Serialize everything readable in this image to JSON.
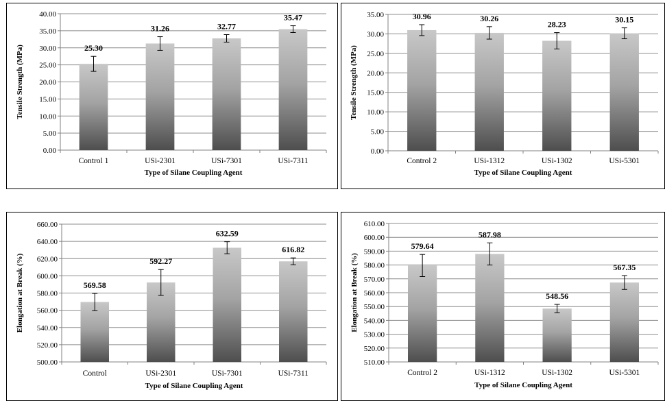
{
  "chart_data": [
    {
      "type": "bar",
      "title": "",
      "xlabel": "Type of Silane Coupling Agent",
      "ylabel": "Tensile Strength (MPa)",
      "categories": [
        "Control 1",
        "USi-2301",
        "USi-7301",
        "USi-7311"
      ],
      "values": [
        25.3,
        31.26,
        32.77,
        35.47
      ],
      "errors": [
        2.2,
        2.0,
        1.1,
        1.0
      ],
      "data_labels": [
        "25.30",
        "31.26",
        "32.77",
        "35.47"
      ],
      "ylim": [
        0,
        40
      ],
      "yticks": [
        "0.00",
        "5.00",
        "10.00",
        "15.00",
        "20.00",
        "25.00",
        "30.00",
        "35.00",
        "40.00"
      ],
      "grid": true,
      "legend": "none"
    },
    {
      "type": "bar",
      "title": "",
      "xlabel": "Type of Silane Coupling Agent",
      "ylabel": "Tensile Strength (MPa)",
      "categories": [
        "Control 2",
        "USi-1312",
        "USi-1302",
        "USi-5301"
      ],
      "values": [
        30.96,
        30.26,
        28.23,
        30.15
      ],
      "errors": [
        1.4,
        1.6,
        2.1,
        1.4
      ],
      "data_labels": [
        "30.96",
        "30.26",
        "28.23",
        "30.15"
      ],
      "ylim": [
        0,
        35
      ],
      "yticks": [
        "0.00",
        "5.00",
        "10.00",
        "15.00",
        "20.00",
        "25.00",
        "30.00",
        "35.00"
      ],
      "grid": true,
      "legend": "none"
    },
    {
      "type": "bar",
      "title": "",
      "xlabel": "Type of Silane Coupling Agent",
      "ylabel": "Elongation at Break (%)",
      "categories": [
        "Control",
        "USi-2301",
        "USi-7301",
        "USi-7311"
      ],
      "values": [
        569.58,
        592.27,
        632.59,
        616.82
      ],
      "errors": [
        10,
        15,
        7,
        4
      ],
      "data_labels": [
        "569.58",
        "592.27",
        "632.59",
        "616.82"
      ],
      "ylim": [
        500,
        660
      ],
      "yticks": [
        "500.00",
        "520.00",
        "540.00",
        "560.00",
        "580.00",
        "600.00",
        "620.00",
        "640.00",
        "660.00"
      ],
      "grid": true,
      "legend": "none"
    },
    {
      "type": "bar",
      "title": "",
      "xlabel": "Type of Silane Coupling Agent",
      "ylabel": "Elongation at Break (%)",
      "categories": [
        "Control 2",
        "USi-1312",
        "USi-1302",
        "USi-5301"
      ],
      "values": [
        579.64,
        587.98,
        548.56,
        567.35
      ],
      "errors": [
        8,
        8,
        3,
        5
      ],
      "data_labels": [
        "579.64",
        "587.98",
        "548.56",
        "567.35"
      ],
      "ylim": [
        510,
        610
      ],
      "yticks": [
        "510.00",
        "520.00",
        "530.00",
        "540.00",
        "550.00",
        "560.00",
        "570.00",
        "580.00",
        "590.00",
        "600.00",
        "610.00"
      ],
      "grid": true,
      "legend": "none"
    }
  ]
}
